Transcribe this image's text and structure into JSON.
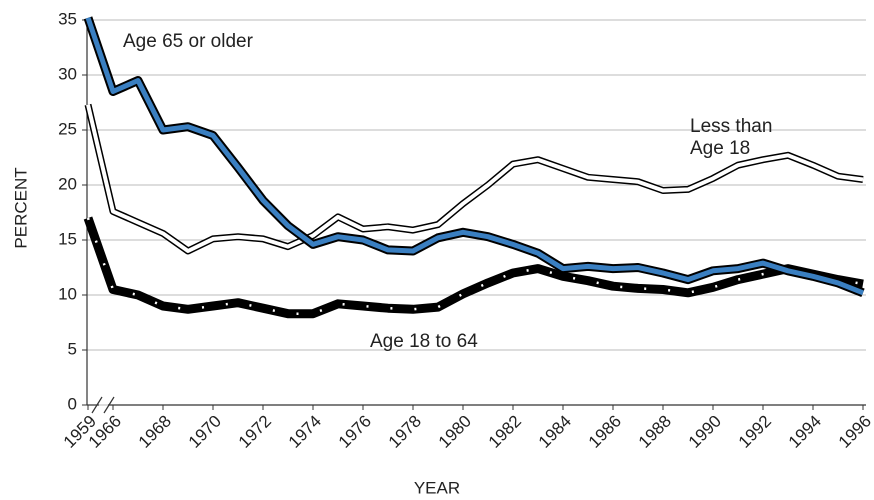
{
  "chart_data": {
    "type": "line",
    "xlabel": "YEAR",
    "ylabel": "PERCENT",
    "categories": [
      "1959",
      "1966",
      null,
      "1968",
      null,
      "1970",
      null,
      "1972",
      null,
      "1974",
      null,
      "1976",
      null,
      "1978",
      null,
      "1980",
      null,
      "1982",
      null,
      "1984",
      null,
      "1986",
      null,
      "1988",
      null,
      "1990",
      null,
      "1992",
      null,
      "1994",
      null,
      "1996"
    ],
    "series": [
      {
        "name": "Age 65 or older",
        "color": "#3a7fc1",
        "values": [
          35.2,
          28.5,
          29.5,
          25.0,
          25.3,
          24.5,
          21.6,
          18.6,
          16.3,
          14.6,
          15.3,
          15.0,
          14.1,
          14.0,
          15.2,
          15.7,
          15.3,
          14.6,
          13.8,
          12.4,
          12.6,
          12.4,
          12.5,
          12.0,
          11.4,
          12.2,
          12.4,
          12.9,
          12.2,
          11.7,
          11.1,
          10.2
        ]
      },
      {
        "name": "Less than Age 18",
        "color": "#ffffff",
        "values": [
          27.3,
          17.6,
          16.6,
          15.6,
          14.0,
          15.1,
          15.3,
          15.1,
          14.4,
          15.4,
          17.1,
          16.0,
          16.2,
          15.9,
          16.4,
          18.3,
          20.0,
          21.9,
          22.3,
          21.5,
          20.7,
          20.5,
          20.3,
          19.5,
          19.6,
          20.6,
          21.8,
          22.3,
          22.7,
          21.8,
          20.8,
          20.5
        ]
      },
      {
        "name": "Age 18 to 64",
        "color": "#000000",
        "values": [
          17.0,
          10.5,
          10.0,
          9.0,
          8.7,
          9.0,
          9.3,
          8.8,
          8.3,
          8.3,
          9.2,
          9.0,
          8.8,
          8.7,
          8.9,
          10.1,
          11.1,
          12.0,
          12.4,
          11.7,
          11.3,
          10.8,
          10.6,
          10.5,
          10.2,
          10.7,
          11.4,
          11.9,
          12.4,
          11.9,
          11.4,
          11.0
        ]
      }
    ],
    "ylim": [
      0,
      35
    ],
    "yticks": [
      0,
      5,
      10,
      15,
      20,
      25,
      30,
      35
    ],
    "grid": true
  }
}
